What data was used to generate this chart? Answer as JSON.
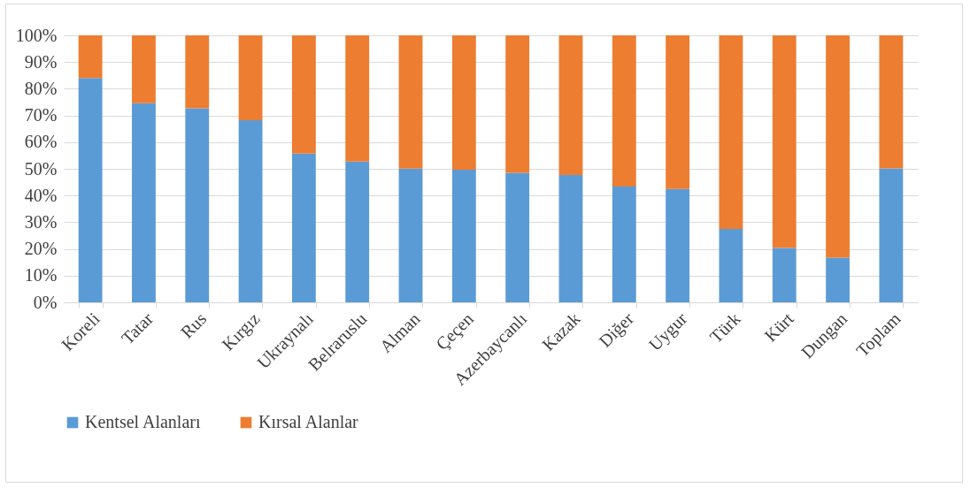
{
  "chart_data": {
    "type": "bar",
    "stacked": true,
    "categories": [
      "Koreli",
      "Tatar",
      "Rus",
      "Kırgız",
      "Ukraynalı",
      "Belraruslu",
      "Alman",
      "Çeçen",
      "Azerbaycanlı",
      "Kazak",
      "Diğer",
      "Uygur",
      "Türk",
      "Kürt",
      "Dungan",
      "Toplam"
    ],
    "series": [
      {
        "name": "Kentsel Alanları",
        "color": "#5b9bd5",
        "values": [
          84,
          74.6,
          72.7,
          68.2,
          55.7,
          52.7,
          50.1,
          49.7,
          48.5,
          47.7,
          43.4,
          42.5,
          27.5,
          20.4,
          16.7,
          50.2
        ]
      },
      {
        "name": "Kırsal Alanlar",
        "color": "#ed7d31",
        "values": [
          16,
          25.4,
          27.3,
          31.8,
          44.3,
          47.3,
          49.9,
          50.3,
          51.5,
          52.3,
          56.6,
          57.5,
          72.5,
          79.6,
          83.3,
          49.8
        ]
      }
    ],
    "ylim": [
      0,
      100
    ],
    "yticks": [
      {
        "value": 0,
        "label": "0%"
      },
      {
        "value": 10,
        "label": "10%"
      },
      {
        "value": 20,
        "label": "20%"
      },
      {
        "value": 30,
        "label": "30%"
      },
      {
        "value": 40,
        "label": "40%"
      },
      {
        "value": 50,
        "label": "50%"
      },
      {
        "value": 60,
        "label": "60%"
      },
      {
        "value": 70,
        "label": "70%"
      },
      {
        "value": 80,
        "label": "80%"
      },
      {
        "value": 90,
        "label": "90%"
      },
      {
        "value": 100,
        "label": "100%"
      }
    ],
    "grid": "y",
    "legend": "bottom"
  }
}
